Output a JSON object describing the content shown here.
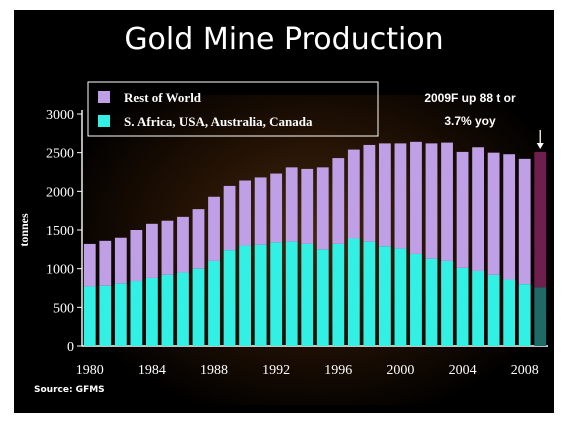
{
  "title": "Gold Mine Production",
  "source": "Source: GFMS",
  "annotation": [
    "2009F up 88 t or",
    "3.7% yoy"
  ],
  "colors": {
    "rest": "#BF9FE6",
    "big4": "#33F0E4",
    "rest_forecast": "#6E1F4E",
    "big4_forecast": "#1F6A66",
    "background": "#000000",
    "text": "#ffffff"
  },
  "chart_data": {
    "type": "bar",
    "stacked": true,
    "title": "Gold Mine Production",
    "xlabel": "",
    "ylabel": "tonnes",
    "ylim": [
      0,
      3000
    ],
    "yticks": [
      0,
      500,
      1000,
      1500,
      2000,
      2500,
      3000
    ],
    "xtick_labels": [
      "1980",
      "1984",
      "1988",
      "1992",
      "1996",
      "2000",
      "2004",
      "2008"
    ],
    "legend_position": "top-left",
    "categories": [
      1980,
      1981,
      1982,
      1983,
      1984,
      1985,
      1986,
      1987,
      1988,
      1989,
      1990,
      1991,
      1992,
      1993,
      1994,
      1995,
      1996,
      1997,
      1998,
      1999,
      2000,
      2001,
      2002,
      2003,
      2004,
      2005,
      2006,
      2007,
      2008,
      2009
    ],
    "forecast_category": 2009,
    "series": [
      {
        "name": "S. Africa, USA, Australia, Canada",
        "values": [
          770,
          780,
          810,
          840,
          880,
          920,
          950,
          1000,
          1100,
          1240,
          1300,
          1310,
          1340,
          1350,
          1320,
          1250,
          1320,
          1390,
          1350,
          1290,
          1260,
          1190,
          1130,
          1100,
          1010,
          970,
          920,
          860,
          800,
          760
        ]
      },
      {
        "name": "Rest of World",
        "values": [
          550,
          580,
          590,
          660,
          700,
          700,
          720,
          770,
          830,
          830,
          840,
          870,
          890,
          960,
          970,
          1060,
          1110,
          1150,
          1250,
          1330,
          1360,
          1450,
          1490,
          1530,
          1500,
          1600,
          1580,
          1620,
          1620,
          1750
        ]
      }
    ]
  }
}
